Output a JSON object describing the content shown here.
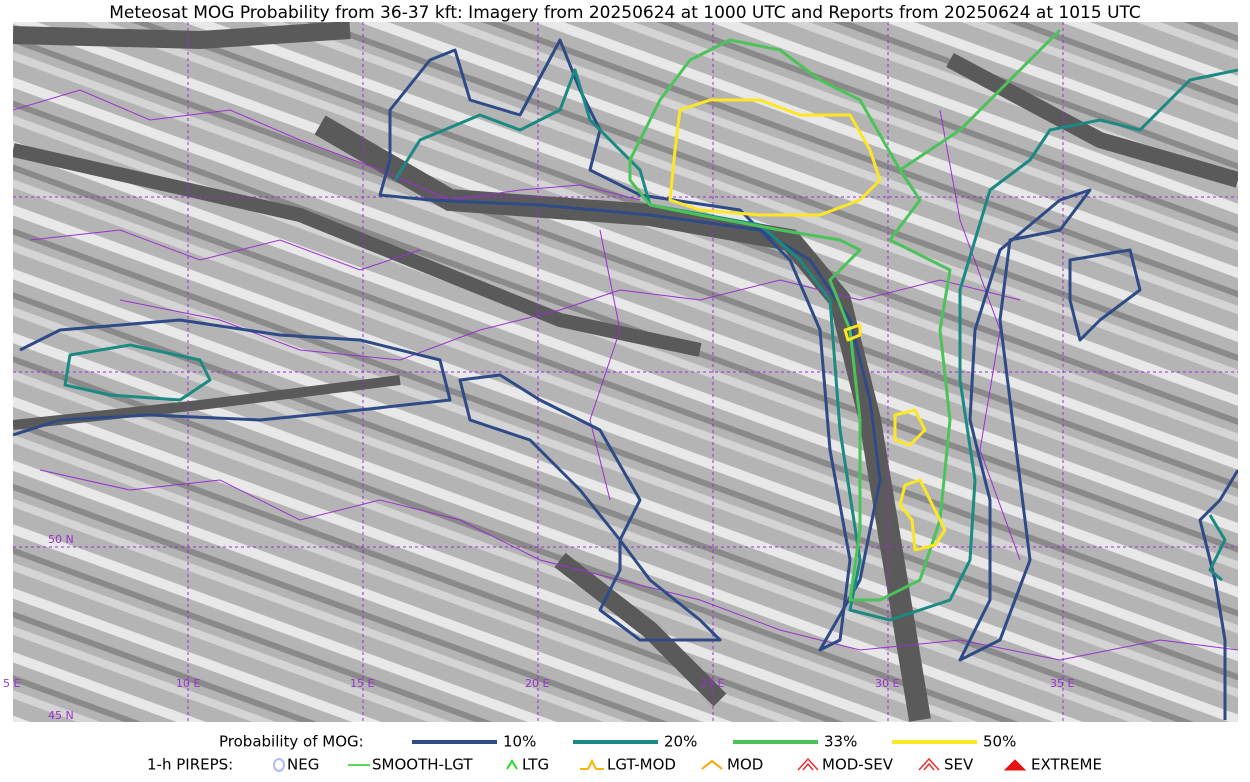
{
  "title": "Meteosat MOG Probability from 36-37 kft: Imagery from 20250624 at 1000 UTC and Reports from 20250624 at 1015 UTC",
  "map": {
    "grid_labels": [
      "5 E",
      "10 E",
      "15 E",
      "20 E",
      "25 E",
      "30 E",
      "35 E",
      "50 N",
      "45 N"
    ]
  },
  "legend": {
    "probability": {
      "label": "Probability of MOG:",
      "items": [
        {
          "label": "10%",
          "color": "#2e4a87"
        },
        {
          "label": "20%",
          "color": "#1a8a82"
        },
        {
          "label": "33%",
          "color": "#4cc35a"
        },
        {
          "label": "50%",
          "color": "#fde725"
        }
      ]
    },
    "pireps": {
      "label": "1-h PIREPS:",
      "items": [
        {
          "label": "NEG",
          "color": "#b0b8ff"
        },
        {
          "label": "SMOOTH-LGT",
          "color": "#22cc22"
        },
        {
          "label": "LTG",
          "color": "#22dd22"
        },
        {
          "label": "LGT-MOD",
          "color": "#f5b800"
        },
        {
          "label": "MOD",
          "color": "#f5a800"
        },
        {
          "label": "MOD-SEV",
          "color": "#e83030"
        },
        {
          "label": "SEV",
          "color": "#e83030"
        },
        {
          "label": "EXTREME",
          "color": "#e81010"
        }
      ]
    }
  }
}
